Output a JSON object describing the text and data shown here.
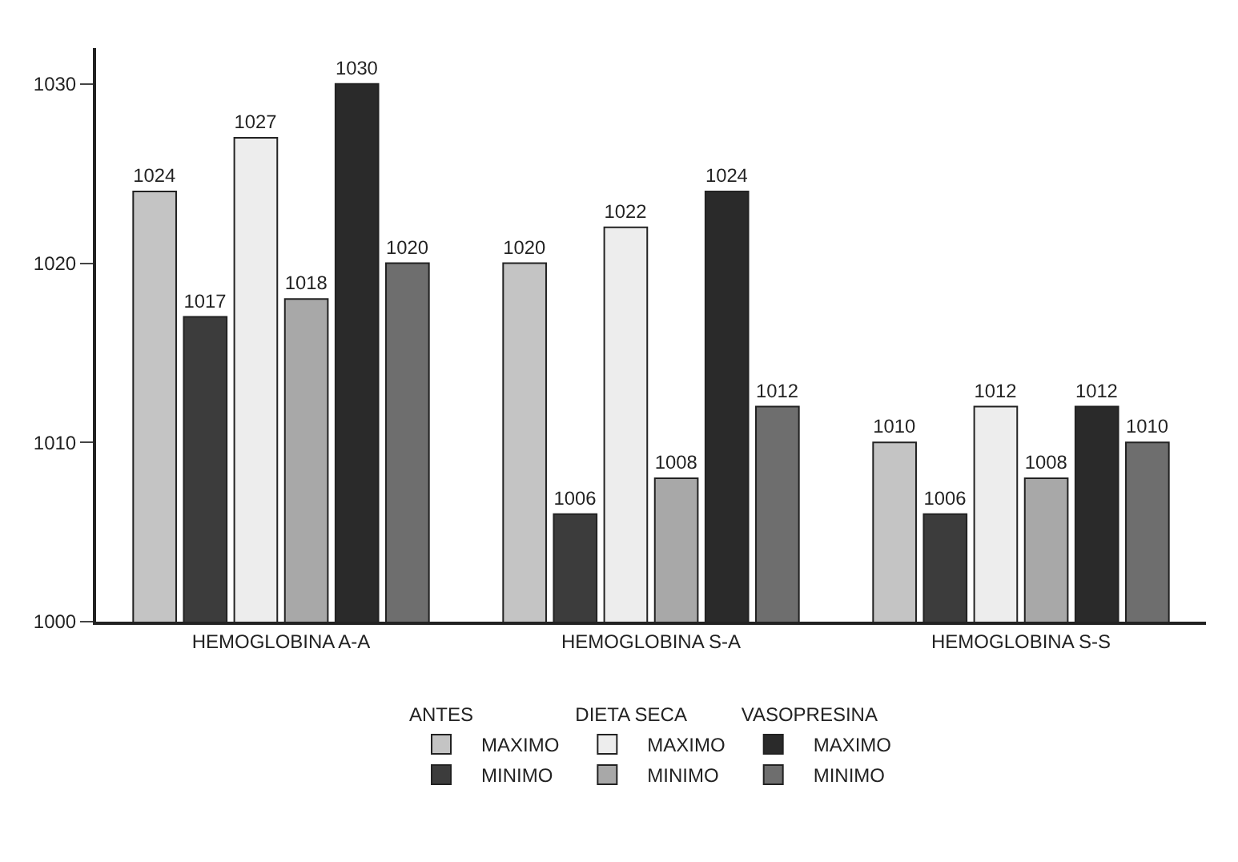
{
  "chart_data": {
    "type": "bar",
    "categories": [
      "HEMOGLOBINA A-A",
      "HEMOGLOBINA S-A",
      "HEMOGLOBINA S-S"
    ],
    "series": [
      {
        "name": "MAXIMO",
        "color": "#c4c4c4",
        "values": [
          1024,
          1020,
          1010
        ]
      },
      {
        "name": "MINIMO",
        "color": "#3c3c3c",
        "values": [
          1017,
          1006,
          1006
        ]
      },
      {
        "name": "MAXIMO",
        "color": "#ededed",
        "values": [
          1027,
          1022,
          1012
        ]
      },
      {
        "name": "MINIMO",
        "color": "#a8a8a8",
        "values": [
          1018,
          1008,
          1008
        ]
      },
      {
        "name": "MAXIMO",
        "color": "#2a2a2a",
        "values": [
          1030,
          1024,
          1012
        ]
      },
      {
        "name": "MINIMO",
        "color": "#6e6e6e",
        "values": [
          1020,
          1012,
          1010
        ]
      }
    ],
    "annotations": [
      "ANTES",
      "DIETA SECA",
      "VASOPRESINA"
    ],
    "ylim": [
      1000,
      1032
    ],
    "yticks": [
      1000,
      1010,
      1020,
      1030
    ],
    "grid": false,
    "legend": "bottom",
    "data_labels": true
  }
}
